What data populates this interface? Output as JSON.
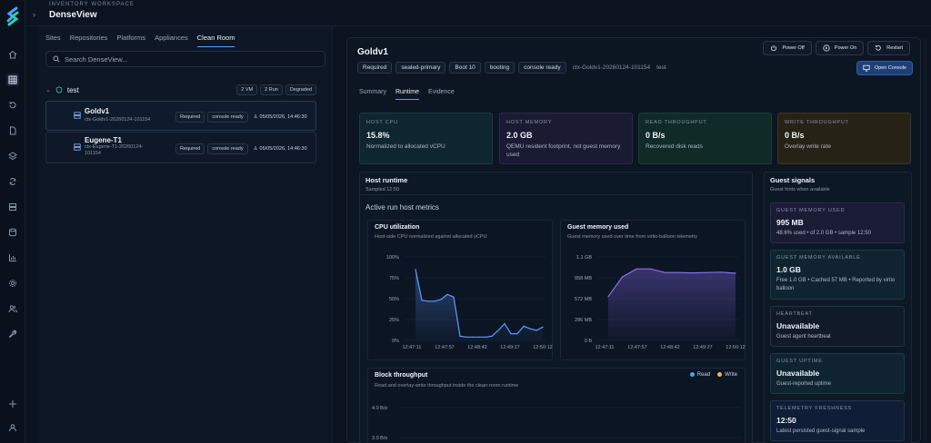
{
  "workspace": {
    "kicker": "INVENTORY WORKSPACE",
    "title": "DenseView"
  },
  "nav_tabs": [
    "Sites",
    "Repositories",
    "Platforms",
    "Appliances",
    "Clean Room"
  ],
  "search": {
    "placeholder": "Search DenseView..."
  },
  "group": {
    "name": "test",
    "badges": [
      "2 VM",
      "2 Run",
      "Degraded"
    ]
  },
  "vms": [
    {
      "name": "Goldv1",
      "sub": "ctx-Goldv1-20260124-101154",
      "badges": [
        "Required",
        "console ready"
      ],
      "date": "05/05/2026, 14:46:30"
    },
    {
      "name": "Eugene-T1",
      "sub": "ctx-Eugene-T1-20260124-101154",
      "badges": [
        "Required",
        "console ready"
      ],
      "date": "05/05/2026, 14:46:30"
    }
  ],
  "detail": {
    "title": "Goldv1",
    "chips": [
      "Required",
      "sealed-primary",
      "Boot 10",
      "booting",
      "console ready"
    ],
    "context": "ctx-Goldv1-20260124-101154",
    "group": "test",
    "actions": {
      "power_off": "Power Off",
      "power_on": "Power On",
      "restart": "Restart",
      "open_console": "Open Console"
    },
    "tabs": [
      "Summary",
      "Runtime",
      "Evidence"
    ]
  },
  "stats": {
    "cpu": {
      "label": "HOST CPU",
      "value": "15.8%",
      "desc": "Normalized to allocated vCPU"
    },
    "mem": {
      "label": "HOST MEMORY",
      "value": "2.0 GB",
      "desc": "QEMU resident footprint, not guest memory used"
    },
    "read": {
      "label": "READ THROUGHPUT",
      "value": "0 B/s",
      "desc": "Recovered disk reads"
    },
    "write": {
      "label": "WRITE THROUGHPUT",
      "value": "0 B/s",
      "desc": "Overlay write rate"
    }
  },
  "runtime": {
    "title": "Host runtime",
    "sampled": "Sampled 12:50",
    "subtitle": "Active run host metrics"
  },
  "charts": {
    "cpu": {
      "title": "CPU utilization",
      "subtitle": "Host-side CPU normalized against allocated vCPU"
    },
    "memory": {
      "title": "Guest memory used",
      "subtitle": "Guest memory used over time from virtio-balloon telemetry"
    },
    "block": {
      "title": "Block throughput",
      "subtitle": "Read and overlay-write throughput inside the clean-room runtime",
      "legend": [
        "Read",
        "Write"
      ]
    }
  },
  "chart_data": [
    {
      "type": "area",
      "title": "CPU utilization",
      "yticks": [
        "100%",
        "75%",
        "50%",
        "25%",
        "0%"
      ],
      "xticks": [
        "12:47:11",
        "12:47:57",
        "12:48:42",
        "12:49:27",
        "12:50:12"
      ],
      "ylim": [
        0,
        100
      ],
      "x": [
        0,
        1,
        2,
        3,
        4,
        5,
        6,
        7,
        8,
        9,
        10,
        11,
        12,
        13,
        14,
        15,
        16,
        17,
        18,
        19,
        20
      ],
      "values": [
        85,
        48,
        47,
        47,
        49,
        55,
        52,
        5,
        4,
        4,
        4,
        4,
        5,
        12,
        20,
        8,
        8,
        17,
        14,
        12,
        16
      ],
      "color": "#5b9cff"
    },
    {
      "type": "area",
      "title": "Guest memory used",
      "yticks": [
        "1.1 GB",
        "858 MB",
        "572 MB",
        "286 MB",
        "0 B"
      ],
      "xticks": [
        "12:47:11",
        "12:47:57",
        "12:48:42",
        "12:49:27",
        "12:50:12"
      ],
      "ylim_mb": [
        0,
        1144
      ],
      "x": [
        0,
        1,
        2,
        3,
        4,
        5,
        6,
        7,
        8,
        9
      ],
      "values_mb": [
        600,
        870,
        980,
        980,
        930,
        930,
        925,
        930,
        935,
        920
      ],
      "color": "#8b6cf0"
    },
    {
      "type": "line",
      "title": "Block throughput",
      "yticks": [
        "4.0 B/s",
        "3.0 B/s"
      ],
      "series": [
        {
          "name": "Read",
          "color": "#3ea6f5"
        },
        {
          "name": "Write",
          "color": "#f5b83e"
        }
      ]
    }
  ],
  "guest": {
    "title": "Guest signals",
    "subtitle": "Guest hints when available",
    "cards": [
      {
        "label": "GUEST MEMORY USED",
        "value": "995 MB",
        "desc": "48.6% used • of 2.0 GB • sample 12:50"
      },
      {
        "label": "GUEST MEMORY AVAILABLE",
        "value": "1.0 GB",
        "desc": "Free 1.0 GB • Cached 57 MB • Reported by virtio balloon"
      },
      {
        "label": "HEARTBEAT",
        "value": "Unavailable",
        "desc": "Guest agent heartbeat"
      },
      {
        "label": "GUEST UPTIME",
        "value": "Unavailable",
        "desc": "Guest-reported uptime"
      },
      {
        "label": "TELEMETRY FRESHNESS",
        "value": "12:50",
        "desc": "Latest persisted guest-signal sample"
      }
    ]
  }
}
